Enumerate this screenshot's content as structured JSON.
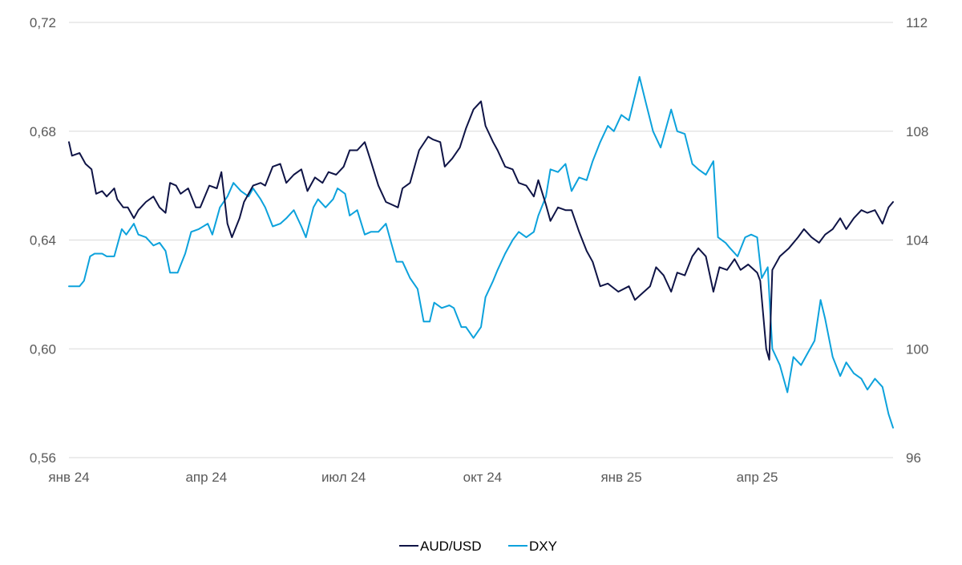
{
  "chart_data": {
    "type": "line",
    "x_type": "date",
    "x_range": [
      "2024-01-01",
      "2025-06-30"
    ],
    "x_ticks": [
      {
        "date": "2024-01-01",
        "label": "янв 24"
      },
      {
        "date": "2024-04-01",
        "label": "апр 24"
      },
      {
        "date": "2024-07-01",
        "label": "июл 24"
      },
      {
        "date": "2024-10-01",
        "label": "окт 24"
      },
      {
        "date": "2025-01-01",
        "label": "янв 25"
      },
      {
        "date": "2025-04-01",
        "label": "апр 25"
      }
    ],
    "y_left": {
      "range": [
        0.56,
        0.72
      ],
      "ticks": [
        "0,56",
        "0,60",
        "0,64",
        "0,68",
        "0,72"
      ],
      "tick_values": [
        0.56,
        0.6,
        0.64,
        0.68,
        0.72
      ]
    },
    "y_right": {
      "range": [
        96,
        112
      ],
      "ticks": [
        "96",
        "100",
        "104",
        "108",
        "112"
      ],
      "tick_values": [
        96,
        100,
        104,
        108,
        112
      ]
    },
    "grid": "horizontal",
    "legend_position": "bottom",
    "series": [
      {
        "name": "AUD/USD",
        "axis": "left",
        "color": "#0f1446",
        "points": [
          [
            "2024-01-01",
            0.676
          ],
          [
            "2024-01-03",
            0.671
          ],
          [
            "2024-01-08",
            0.672
          ],
          [
            "2024-01-12",
            0.668
          ],
          [
            "2024-01-16",
            0.666
          ],
          [
            "2024-01-19",
            0.657
          ],
          [
            "2024-01-23",
            0.658
          ],
          [
            "2024-01-26",
            0.656
          ],
          [
            "2024-01-31",
            0.659
          ],
          [
            "2024-02-02",
            0.655
          ],
          [
            "2024-02-06",
            0.652
          ],
          [
            "2024-02-09",
            0.652
          ],
          [
            "2024-02-13",
            0.648
          ],
          [
            "2024-02-16",
            0.651
          ],
          [
            "2024-02-21",
            0.654
          ],
          [
            "2024-02-26",
            0.656
          ],
          [
            "2024-03-01",
            0.652
          ],
          [
            "2024-03-05",
            0.65
          ],
          [
            "2024-03-08",
            0.661
          ],
          [
            "2024-03-12",
            0.66
          ],
          [
            "2024-03-15",
            0.657
          ],
          [
            "2024-03-20",
            0.659
          ],
          [
            "2024-03-25",
            0.652
          ],
          [
            "2024-03-28",
            0.652
          ],
          [
            "2024-04-03",
            0.66
          ],
          [
            "2024-04-08",
            0.659
          ],
          [
            "2024-04-11",
            0.665
          ],
          [
            "2024-04-15",
            0.646
          ],
          [
            "2024-04-18",
            0.641
          ],
          [
            "2024-04-23",
            0.648
          ],
          [
            "2024-04-26",
            0.654
          ],
          [
            "2024-05-02",
            0.66
          ],
          [
            "2024-05-07",
            0.661
          ],
          [
            "2024-05-10",
            0.66
          ],
          [
            "2024-05-15",
            0.667
          ],
          [
            "2024-05-20",
            0.668
          ],
          [
            "2024-05-24",
            0.661
          ],
          [
            "2024-05-29",
            0.664
          ],
          [
            "2024-06-03",
            0.666
          ],
          [
            "2024-06-07",
            0.658
          ],
          [
            "2024-06-12",
            0.663
          ],
          [
            "2024-06-17",
            0.661
          ],
          [
            "2024-06-21",
            0.665
          ],
          [
            "2024-06-26",
            0.664
          ],
          [
            "2024-07-01",
            0.667
          ],
          [
            "2024-07-05",
            0.673
          ],
          [
            "2024-07-10",
            0.673
          ],
          [
            "2024-07-15",
            0.676
          ],
          [
            "2024-07-19",
            0.669
          ],
          [
            "2024-07-24",
            0.66
          ],
          [
            "2024-07-29",
            0.654
          ],
          [
            "2024-08-02",
            0.653
          ],
          [
            "2024-08-06",
            0.652
          ],
          [
            "2024-08-09",
            0.659
          ],
          [
            "2024-08-14",
            0.661
          ],
          [
            "2024-08-20",
            0.673
          ],
          [
            "2024-08-26",
            0.678
          ],
          [
            "2024-08-29",
            0.677
          ],
          [
            "2024-09-03",
            0.676
          ],
          [
            "2024-09-06",
            0.667
          ],
          [
            "2024-09-11",
            0.67
          ],
          [
            "2024-09-16",
            0.674
          ],
          [
            "2024-09-20",
            0.681
          ],
          [
            "2024-09-25",
            0.688
          ],
          [
            "2024-09-30",
            0.691
          ],
          [
            "2024-10-03",
            0.682
          ],
          [
            "2024-10-08",
            0.676
          ],
          [
            "2024-10-11",
            0.673
          ],
          [
            "2024-10-16",
            0.667
          ],
          [
            "2024-10-21",
            0.666
          ],
          [
            "2024-10-25",
            0.661
          ],
          [
            "2024-10-30",
            0.66
          ],
          [
            "2024-11-04",
            0.656
          ],
          [
            "2024-11-07",
            0.662
          ],
          [
            "2024-11-12",
            0.653
          ],
          [
            "2024-11-15",
            0.647
          ],
          [
            "2024-11-20",
            0.652
          ],
          [
            "2024-11-25",
            0.651
          ],
          [
            "2024-11-29",
            0.651
          ],
          [
            "2024-12-04",
            0.643
          ],
          [
            "2024-12-09",
            0.636
          ],
          [
            "2024-12-13",
            0.632
          ],
          [
            "2024-12-18",
            0.623
          ],
          [
            "2024-12-23",
            0.624
          ],
          [
            "2024-12-30",
            0.621
          ],
          [
            "2025-01-06",
            0.623
          ],
          [
            "2025-01-10",
            0.618
          ],
          [
            "2025-01-14",
            0.62
          ],
          [
            "2025-01-20",
            0.623
          ],
          [
            "2025-01-24",
            0.63
          ],
          [
            "2025-01-29",
            0.627
          ],
          [
            "2025-02-03",
            0.621
          ],
          [
            "2025-02-07",
            0.628
          ],
          [
            "2025-02-12",
            0.627
          ],
          [
            "2025-02-17",
            0.634
          ],
          [
            "2025-02-21",
            0.637
          ],
          [
            "2025-02-26",
            0.634
          ],
          [
            "2025-03-03",
            0.621
          ],
          [
            "2025-03-07",
            0.63
          ],
          [
            "2025-03-12",
            0.629
          ],
          [
            "2025-03-17",
            0.633
          ],
          [
            "2025-03-21",
            0.629
          ],
          [
            "2025-03-26",
            0.631
          ],
          [
            "2025-04-01",
            0.628
          ],
          [
            "2025-04-03",
            0.625
          ],
          [
            "2025-04-07",
            0.6
          ],
          [
            "2025-04-09",
            0.596
          ],
          [
            "2025-04-11",
            0.629
          ],
          [
            "2025-04-16",
            0.634
          ],
          [
            "2025-04-22",
            0.637
          ],
          [
            "2025-04-28",
            0.641
          ],
          [
            "2025-05-02",
            0.644
          ],
          [
            "2025-05-07",
            0.641
          ],
          [
            "2025-05-12",
            0.639
          ],
          [
            "2025-05-16",
            0.642
          ],
          [
            "2025-05-21",
            0.644
          ],
          [
            "2025-05-26",
            0.648
          ],
          [
            "2025-05-30",
            0.644
          ],
          [
            "2025-06-04",
            0.648
          ],
          [
            "2025-06-09",
            0.651
          ],
          [
            "2025-06-13",
            0.65
          ],
          [
            "2025-06-18",
            0.651
          ],
          [
            "2025-06-23",
            0.646
          ],
          [
            "2025-06-27",
            0.652
          ],
          [
            "2025-06-30",
            0.654
          ]
        ]
      },
      {
        "name": "DXY",
        "axis": "right",
        "color": "#0da2dc",
        "points": [
          [
            "2024-01-01",
            102.3
          ],
          [
            "2024-01-04",
            102.3
          ],
          [
            "2024-01-08",
            102.3
          ],
          [
            "2024-01-11",
            102.5
          ],
          [
            "2024-01-15",
            103.4
          ],
          [
            "2024-01-18",
            103.5
          ],
          [
            "2024-01-23",
            103.5
          ],
          [
            "2024-01-26",
            103.4
          ],
          [
            "2024-01-31",
            103.4
          ],
          [
            "2024-02-05",
            104.4
          ],
          [
            "2024-02-08",
            104.2
          ],
          [
            "2024-02-13",
            104.6
          ],
          [
            "2024-02-16",
            104.2
          ],
          [
            "2024-02-21",
            104.1
          ],
          [
            "2024-02-26",
            103.8
          ],
          [
            "2024-03-01",
            103.9
          ],
          [
            "2024-03-05",
            103.6
          ],
          [
            "2024-03-08",
            102.8
          ],
          [
            "2024-03-13",
            102.8
          ],
          [
            "2024-03-18",
            103.5
          ],
          [
            "2024-03-22",
            104.3
          ],
          [
            "2024-03-27",
            104.4
          ],
          [
            "2024-04-02",
            104.6
          ],
          [
            "2024-04-05",
            104.2
          ],
          [
            "2024-04-10",
            105.2
          ],
          [
            "2024-04-15",
            105.6
          ],
          [
            "2024-04-19",
            106.1
          ],
          [
            "2024-04-24",
            105.8
          ],
          [
            "2024-04-29",
            105.6
          ],
          [
            "2024-05-02",
            105.9
          ],
          [
            "2024-05-07",
            105.5
          ],
          [
            "2024-05-10",
            105.2
          ],
          [
            "2024-05-15",
            104.5
          ],
          [
            "2024-05-20",
            104.6
          ],
          [
            "2024-05-24",
            104.8
          ],
          [
            "2024-05-29",
            105.1
          ],
          [
            "2024-06-03",
            104.5
          ],
          [
            "2024-06-06",
            104.1
          ],
          [
            "2024-06-11",
            105.2
          ],
          [
            "2024-06-14",
            105.5
          ],
          [
            "2024-06-19",
            105.2
          ],
          [
            "2024-06-24",
            105.5
          ],
          [
            "2024-06-27",
            105.9
          ],
          [
            "2024-07-02",
            105.7
          ],
          [
            "2024-07-05",
            104.9
          ],
          [
            "2024-07-10",
            105.1
          ],
          [
            "2024-07-15",
            104.2
          ],
          [
            "2024-07-19",
            104.3
          ],
          [
            "2024-07-24",
            104.3
          ],
          [
            "2024-07-29",
            104.6
          ],
          [
            "2024-08-01",
            104.0
          ],
          [
            "2024-08-05",
            103.2
          ],
          [
            "2024-08-09",
            103.2
          ],
          [
            "2024-08-14",
            102.6
          ],
          [
            "2024-08-19",
            102.2
          ],
          [
            "2024-08-23",
            101.0
          ],
          [
            "2024-08-27",
            101.0
          ],
          [
            "2024-08-30",
            101.7
          ],
          [
            "2024-09-04",
            101.5
          ],
          [
            "2024-09-09",
            101.6
          ],
          [
            "2024-09-12",
            101.5
          ],
          [
            "2024-09-17",
            100.8
          ],
          [
            "2024-09-20",
            100.8
          ],
          [
            "2024-09-25",
            100.4
          ],
          [
            "2024-09-30",
            100.8
          ],
          [
            "2024-10-03",
            101.9
          ],
          [
            "2024-10-08",
            102.5
          ],
          [
            "2024-10-11",
            102.9
          ],
          [
            "2024-10-16",
            103.5
          ],
          [
            "2024-10-21",
            104.0
          ],
          [
            "2024-10-25",
            104.3
          ],
          [
            "2024-10-30",
            104.1
          ],
          [
            "2024-11-04",
            104.3
          ],
          [
            "2024-11-07",
            104.9
          ],
          [
            "2024-11-12",
            105.6
          ],
          [
            "2024-11-15",
            106.6
          ],
          [
            "2024-11-20",
            106.5
          ],
          [
            "2024-11-25",
            106.8
          ],
          [
            "2024-11-29",
            105.8
          ],
          [
            "2024-12-04",
            106.3
          ],
          [
            "2024-12-09",
            106.2
          ],
          [
            "2024-12-13",
            106.9
          ],
          [
            "2024-12-18",
            107.6
          ],
          [
            "2024-12-23",
            108.2
          ],
          [
            "2024-12-27",
            108.0
          ],
          [
            "2025-01-01",
            108.6
          ],
          [
            "2025-01-06",
            108.4
          ],
          [
            "2025-01-10",
            109.3
          ],
          [
            "2025-01-13",
            110.0
          ],
          [
            "2025-01-17",
            109.1
          ],
          [
            "2025-01-22",
            108.0
          ],
          [
            "2025-01-27",
            107.4
          ],
          [
            "2025-02-03",
            108.8
          ],
          [
            "2025-02-07",
            108.0
          ],
          [
            "2025-02-12",
            107.9
          ],
          [
            "2025-02-17",
            106.8
          ],
          [
            "2025-02-21",
            106.6
          ],
          [
            "2025-02-26",
            106.4
          ],
          [
            "2025-03-03",
            106.9
          ],
          [
            "2025-03-06",
            104.1
          ],
          [
            "2025-03-11",
            103.9
          ],
          [
            "2025-03-14",
            103.7
          ],
          [
            "2025-03-19",
            103.4
          ],
          [
            "2025-03-24",
            104.1
          ],
          [
            "2025-03-28",
            104.2
          ],
          [
            "2025-04-01",
            104.1
          ],
          [
            "2025-04-04",
            102.6
          ],
          [
            "2025-04-08",
            103.0
          ],
          [
            "2025-04-11",
            100.0
          ],
          [
            "2025-04-16",
            99.4
          ],
          [
            "2025-04-21",
            98.4
          ],
          [
            "2025-04-25",
            99.7
          ],
          [
            "2025-04-30",
            99.4
          ],
          [
            "2025-05-05",
            99.9
          ],
          [
            "2025-05-09",
            100.3
          ],
          [
            "2025-05-13",
            101.8
          ],
          [
            "2025-05-16",
            101.1
          ],
          [
            "2025-05-21",
            99.7
          ],
          [
            "2025-05-26",
            99.0
          ],
          [
            "2025-05-30",
            99.5
          ],
          [
            "2025-06-04",
            99.1
          ],
          [
            "2025-06-09",
            98.9
          ],
          [
            "2025-06-13",
            98.5
          ],
          [
            "2025-06-18",
            98.9
          ],
          [
            "2025-06-23",
            98.6
          ],
          [
            "2025-06-27",
            97.6
          ],
          [
            "2025-06-30",
            97.1
          ]
        ]
      }
    ]
  }
}
